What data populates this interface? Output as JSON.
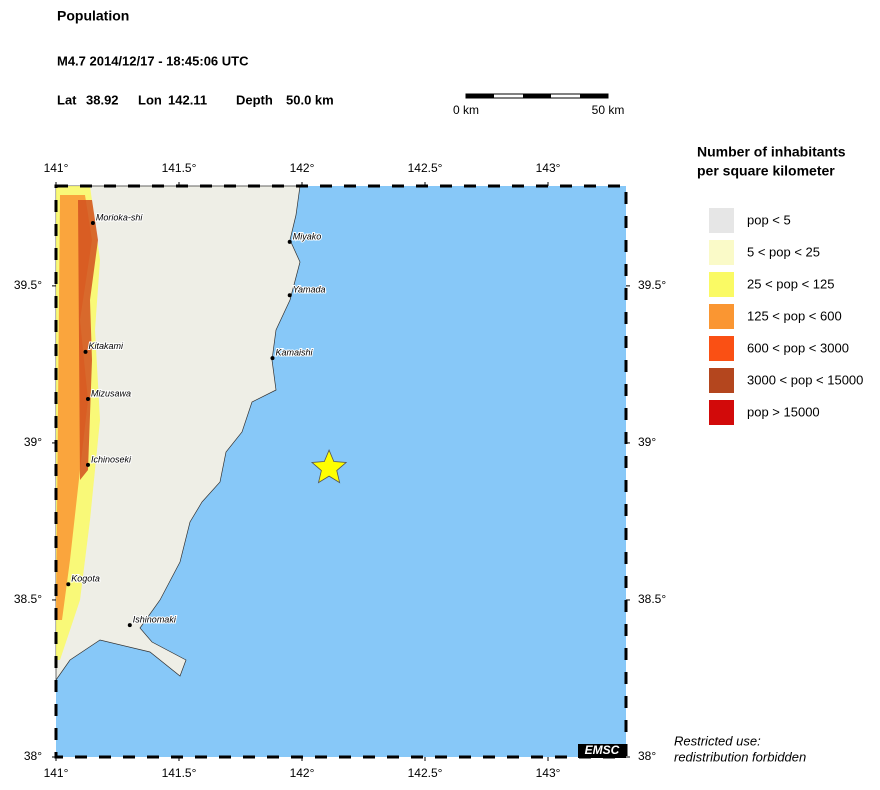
{
  "header": {
    "title": "Population",
    "event": "M4.7  2014/12/17 - 18:45:06 UTC",
    "lat_label": "Lat",
    "lat": 38.92,
    "lon_label": "Lon",
    "lon": 142.11,
    "depth_label": "Depth",
    "depth": "50.0 km"
  },
  "scale": {
    "start": "0 km",
    "end": "50 km"
  },
  "map": {
    "lonlim": [
      141,
      143.317
    ],
    "latlim": [
      38,
      39.818
    ],
    "lonticks": [
      {
        "value": 141,
        "label": "141°"
      },
      {
        "value": 141.5,
        "label": "141.5°"
      },
      {
        "value": 142,
        "label": "142°"
      },
      {
        "value": 142.5,
        "label": "142.5°"
      },
      {
        "value": 143,
        "label": "143°"
      }
    ],
    "latticks": [
      {
        "value": 38,
        "label": "38°"
      },
      {
        "value": 38.5,
        "label": "38.5°"
      },
      {
        "value": 39,
        "label": "39°"
      },
      {
        "value": 39.5,
        "label": "39.5°"
      }
    ],
    "ocean_color": "#87c8f8",
    "land_color": "#eeeee6",
    "cities": [
      {
        "name": "Morioka-shi",
        "lon": 141.15,
        "lat": 39.7
      },
      {
        "name": "Miyako",
        "lon": 141.95,
        "lat": 39.64
      },
      {
        "name": "Yamada",
        "lon": 141.95,
        "lat": 39.47
      },
      {
        "name": "Kamaishi",
        "lon": 141.88,
        "lat": 39.27
      },
      {
        "name": "Kitakami",
        "lon": 141.12,
        "lat": 39.29
      },
      {
        "name": "Mizusawa",
        "lon": 141.13,
        "lat": 39.14
      },
      {
        "name": "Ichinoseki",
        "lon": 141.13,
        "lat": 38.93
      },
      {
        "name": "Kogota",
        "lon": 141.05,
        "lat": 38.55
      },
      {
        "name": "Ishinomaki",
        "lon": 141.3,
        "lat": 38.42
      }
    ],
    "badge": "EMSC"
  },
  "legend": {
    "title_line1": "Number of inhabitants",
    "title_line2": "per square kilometer",
    "items": [
      {
        "label": "pop < 5",
        "color": "#e6e6e6"
      },
      {
        "label": "5 < pop < 25",
        "color": "#fafac8"
      },
      {
        "label": "25 < pop < 125",
        "color": "#fafa64"
      },
      {
        "label": "125 < pop < 600",
        "color": "#fa9632"
      },
      {
        "label": "600 < pop < 3000",
        "color": "#fa5014"
      },
      {
        "label": "3000 < pop < 15000",
        "color": "#b4461e"
      },
      {
        "label": "pop > 15000",
        "color": "#d20a0a"
      }
    ]
  },
  "footer": {
    "line1": "Restricted use:",
    "line2": "redistribution forbidden"
  }
}
